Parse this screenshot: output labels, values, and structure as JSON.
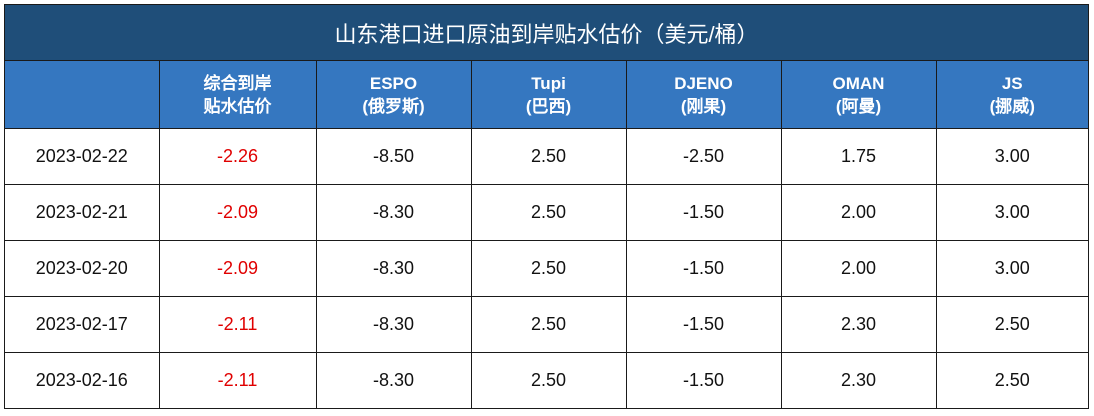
{
  "title": "山东港口进口原油到岸贴水估价（美元/桶）",
  "table": {
    "header": [
      [
        "综合到岸",
        "贴水估价"
      ],
      [
        "ESPO",
        "(俄罗斯)"
      ],
      [
        "Tupi",
        "(巴西)"
      ],
      [
        "DJENO",
        "(刚果)"
      ],
      [
        "OMAN",
        "(阿曼)"
      ],
      [
        "JS",
        "(挪威)"
      ]
    ],
    "rows": [
      [
        "2023-02-22",
        "-2.26",
        "-8.50",
        "2.50",
        "-2.50",
        "1.75",
        "3.00"
      ],
      [
        "2023-02-21",
        "-2.09",
        "-8.30",
        "2.50",
        "-1.50",
        "2.00",
        "3.00"
      ],
      [
        "2023-02-20",
        "-2.09",
        "-8.30",
        "2.50",
        "-1.50",
        "2.00",
        "3.00"
      ],
      [
        "2023-02-17",
        "-2.11",
        "-8.30",
        "2.50",
        "-1.50",
        "2.30",
        "2.50"
      ],
      [
        "2023-02-16",
        "-2.11",
        "-8.30",
        "2.50",
        "-1.50",
        "2.30",
        "2.50"
      ]
    ]
  }
}
